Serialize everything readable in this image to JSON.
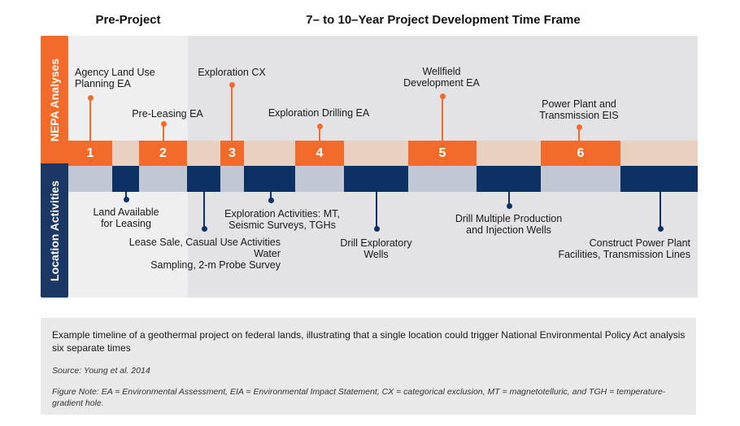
{
  "headers": {
    "pre_project": "Pre-Project",
    "timeframe": "7– to 10–Year Project Development Time Frame"
  },
  "side_labels": {
    "nepa": "NEPA Analyses",
    "location": "Location Activities"
  },
  "colors": {
    "orange": "#f26b2a",
    "navy": "#0e3163",
    "peach_band": "#ead0c0",
    "blue_band": "#c1c7d4"
  },
  "nepa_analyses": [
    {
      "number": "1",
      "label": "Agency Land Use\nPlanning EA"
    },
    {
      "number": "2",
      "label": "Pre-Leasing EA"
    },
    {
      "number": "3",
      "label": "Exploration CX"
    },
    {
      "number": "4",
      "label": "Exploration Drilling EA"
    },
    {
      "number": "5",
      "label": "Wellfield\nDevelopment EA"
    },
    {
      "number": "6",
      "label": "Power Plant and\nTransmission EIS"
    }
  ],
  "location_activities": [
    {
      "label": "Land Available\nfor Leasing"
    },
    {
      "label": "Lease Sale, Casual Use Activities Water\nSampling, 2-m Probe Survey"
    },
    {
      "label": "Exploration Activities: MT,\nSeismic Surveys, TGHs"
    },
    {
      "label": "Drill Exploratory\nWells"
    },
    {
      "label": "Drill Multiple Production\nand Injection Wells"
    },
    {
      "label": "Construct Power Plant\nFacilities, Transmission Lines"
    }
  ],
  "caption": {
    "main": "Example timeline of a geothermal project on federal lands, illustrating that a single location could trigger National Environmental Policy Act analysis six separate times",
    "source": "Source: Young et al. 2014",
    "note": "Figure Note: EA = Environmental Assessment, EIA = Environmental Impact Statement, CX = categorical exclusion, MT = magnetotelluric, and TGH = temperature-gradient hole."
  }
}
